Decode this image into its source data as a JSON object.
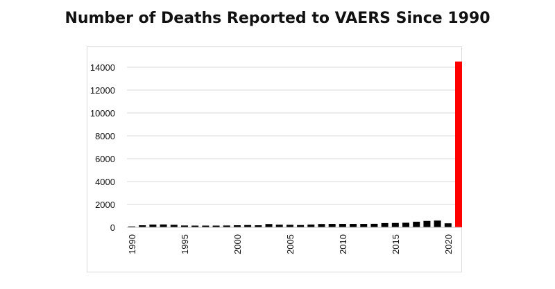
{
  "title": "Number of Deaths Reported to VAERS Since 1990",
  "colors": {
    "bar": "#000000",
    "highlight": "#ff0000",
    "grid": "#d9d9d9",
    "background": "#ffffff"
  },
  "chart_data": {
    "type": "bar",
    "title": "Number of Deaths Reported to VAERS Since 1990",
    "xlabel": "",
    "ylabel": "",
    "ylim": [
      0,
      14000
    ],
    "grid": true,
    "legend": "none",
    "y_ticks": [
      "0",
      "2000",
      "4000",
      "6000",
      "8000",
      "10000",
      "12000",
      "14000"
    ],
    "x_tick_labels": [
      "1990",
      "1995",
      "2000",
      "2005",
      "2010",
      "2015",
      "2020"
    ],
    "categories": [
      1990,
      1991,
      1992,
      1993,
      1994,
      1995,
      1996,
      1997,
      1998,
      1999,
      2000,
      2001,
      2002,
      2003,
      2004,
      2005,
      2006,
      2007,
      2008,
      2009,
      2010,
      2011,
      2012,
      2013,
      2014,
      2015,
      2016,
      2017,
      2018,
      2019,
      2020,
      2021
    ],
    "values": [
      80,
      180,
      240,
      250,
      220,
      160,
      150,
      150,
      150,
      160,
      180,
      200,
      180,
      290,
      230,
      220,
      200,
      240,
      290,
      300,
      300,
      300,
      300,
      310,
      370,
      380,
      400,
      490,
      560,
      590,
      350,
      14500
    ],
    "highlight_category": 2021
  }
}
